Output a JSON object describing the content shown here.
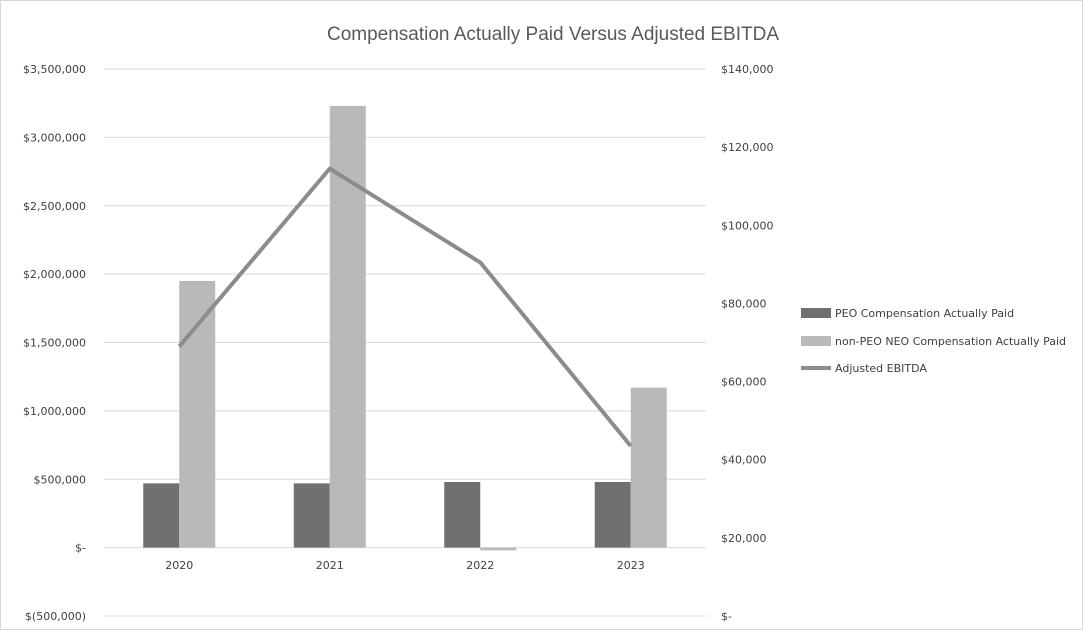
{
  "chart_data": {
    "type": "bar",
    "title": "Compensation Actually Paid Versus Adjusted EBITDA",
    "categories": [
      "2020",
      "2021",
      "2022",
      "2023"
    ],
    "series": [
      {
        "name": "PEO Compensation Actually Paid",
        "kind": "bar",
        "axis": "left",
        "color": "#707070",
        "values": [
          470000,
          470000,
          480000,
          480000
        ]
      },
      {
        "name": "non-PEO NEO Compensation Actually Paid",
        "kind": "bar",
        "axis": "left",
        "color": "#b9b9b9",
        "values": [
          1950000,
          3230000,
          -20000,
          1170000
        ]
      },
      {
        "name": "Adjusted EBITDA",
        "kind": "line",
        "axis": "right",
        "color": "#8c8c8c",
        "values": [
          69000,
          114500,
          90500,
          43500
        ]
      }
    ],
    "left_axis": {
      "ylim": [
        -500000,
        3500000
      ],
      "ticks": [
        3500000,
        3000000,
        2500000,
        2000000,
        1500000,
        1000000,
        500000,
        0,
        -500000
      ],
      "tick_labels": [
        "$3,500,000",
        "$3,000,000",
        "$2,500,000",
        "$2,000,000",
        "$1,500,000",
        "$1,000,000",
        "$500,000",
        "$-",
        "$(500,000)"
      ]
    },
    "right_axis": {
      "ylim": [
        0,
        140000
      ],
      "ticks": [
        140000,
        120000,
        100000,
        80000,
        60000,
        40000,
        20000,
        0
      ],
      "tick_labels": [
        "$140,000",
        "$120,000",
        "$100,000",
        "$80,000",
        "$60,000",
        "$40,000",
        "$20,000",
        "$-"
      ]
    },
    "grid": true,
    "legend_position": "right"
  }
}
